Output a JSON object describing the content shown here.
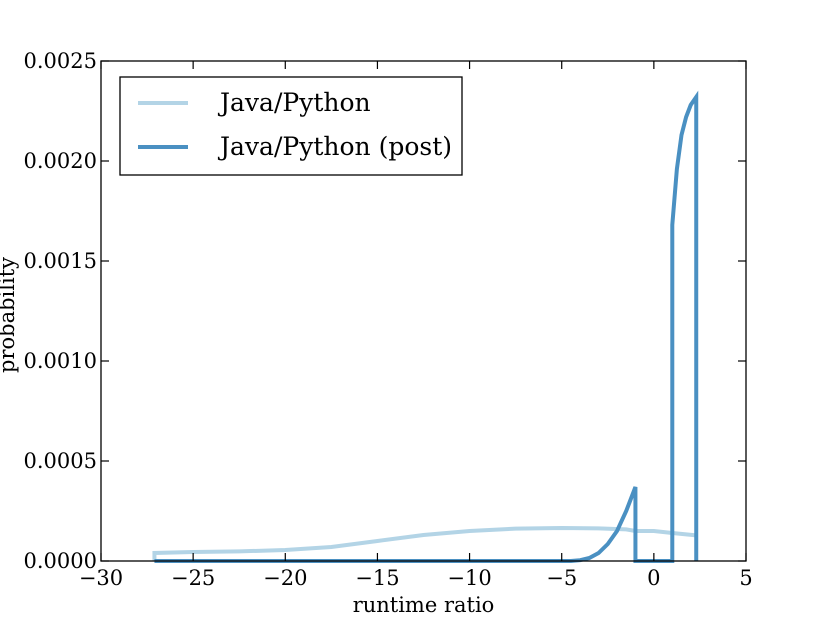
{
  "chart_data": {
    "type": "line",
    "title": "",
    "xlabel": "runtime ratio",
    "ylabel": "probability",
    "xlim": [
      -30,
      5
    ],
    "ylim": [
      0,
      0.0025
    ],
    "x_ticks": [
      -30,
      -25,
      -20,
      -15,
      -10,
      -5,
      0,
      5
    ],
    "x_tick_labels": [
      "−30",
      "−25",
      "−20",
      "−15",
      "−10",
      "−5",
      "0",
      "5"
    ],
    "y_ticks": [
      0,
      0.0005,
      0.001,
      0.0015,
      0.002,
      0.0025
    ],
    "y_tick_labels": [
      "0.0000",
      "0.0005",
      "0.0010",
      "0.0015",
      "0.0020",
      "0.0025"
    ],
    "grid": false,
    "legend_position": "top-left",
    "series": [
      {
        "name": "Java/Python",
        "color": "#b3d4e6",
        "x": [
          -27.1,
          -27.1,
          -25,
          -22.5,
          -20,
          -17.5,
          -15,
          -12.5,
          -10,
          -7.5,
          -5,
          -3,
          -1.5,
          -1.0,
          0,
          1.0,
          2.3
        ],
        "y": [
          0,
          4e-05,
          4.5e-05,
          4.8e-05,
          5.5e-05,
          7e-05,
          0.0001,
          0.00013,
          0.00015,
          0.000162,
          0.000165,
          0.000163,
          0.000158,
          0.00015,
          0.00015,
          0.00014,
          0.000128
        ]
      },
      {
        "name": "Java/Python (post)",
        "color": "#4a90c2",
        "x": [
          -27.1,
          -4.5,
          -4.0,
          -3.5,
          -3.0,
          -2.5,
          -2.0,
          -1.5,
          -1.0,
          -1.0,
          1.0,
          1.0,
          1.25,
          1.5,
          1.75,
          2.0,
          2.3,
          2.3
        ],
        "y": [
          0,
          0,
          4e-06,
          1.5e-05,
          4e-05,
          8.5e-05,
          0.00015,
          0.00025,
          0.00037,
          0,
          0,
          0.00168,
          0.00196,
          0.00213,
          0.00222,
          0.00228,
          0.00232,
          0
        ]
      }
    ]
  }
}
